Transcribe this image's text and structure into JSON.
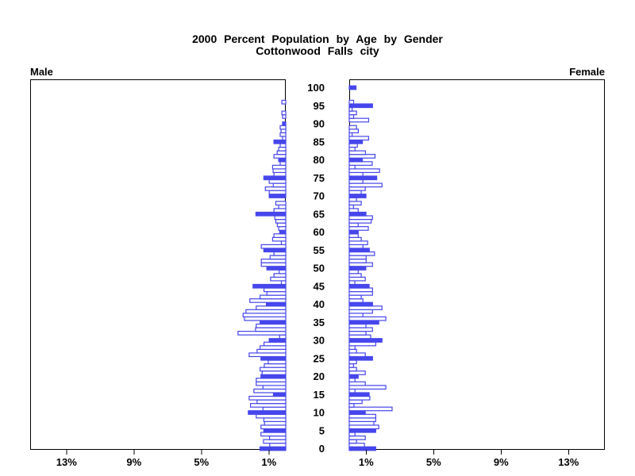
{
  "title": {
    "line1": "2000 Percent Population by Age by Gender",
    "line2": "Cottonwood Falls city"
  },
  "axis_labels": {
    "left": "Male",
    "right": "Female"
  },
  "chart_data": {
    "type": "bar",
    "variant": "population_pyramid",
    "title": "2000 Percent Population by Age by Gender",
    "subtitle": "Cottonwood Falls city",
    "x_axis": {
      "unit": "percent of population",
      "ticks": [
        1,
        5,
        9,
        13
      ],
      "tick_labels": [
        "1%",
        "5%",
        "9%",
        "13%"
      ],
      "max_extent": 15.1,
      "mirrored": true
    },
    "y_axis": {
      "unit": "single year of age",
      "min": 0,
      "max": 100,
      "tick_interval": 5,
      "tick_labels": [
        "0",
        "5",
        "10",
        "15",
        "20",
        "25",
        "30",
        "35",
        "40",
        "45",
        "50",
        "55",
        "60",
        "65",
        "70",
        "75",
        "80",
        "85",
        "90",
        "95",
        "100"
      ]
    },
    "bar_style_rule": "ages divisible by 5 are solid blue; all other ages are white with blue outline",
    "colors": {
      "bar_blue": "#4646ec",
      "outline_bar_fill": "#ffffff",
      "axis_black": "#000000",
      "background": "#ffffff"
    },
    "series": [
      {
        "name": "Male",
        "side": "left",
        "ages": "index equals age 0..100",
        "values": [
          1.53,
          0.95,
          1.32,
          0.96,
          1.47,
          1.3,
          1.47,
          1.26,
          1.3,
          1.75,
          2.22,
          1.35,
          2.09,
          1.7,
          2.17,
          0.73,
          1.89,
          1.35,
          1.75,
          1.75,
          1.47,
          1.4,
          1.52,
          1.27,
          1.04,
          1.47,
          2.17,
          1.7,
          1.52,
          1.29,
          0.98,
          0.36,
          2.83,
          1.79,
          1.75,
          1.52,
          2.45,
          2.53,
          2.36,
          1.75,
          1.15,
          2.13,
          1.52,
          1.12,
          1.29,
          1.94,
          0.26,
          0.9,
          0.7,
          0.39,
          1.12,
          1.45,
          1.45,
          0.93,
          0.7,
          1.3,
          1.45,
          0.26,
          0.78,
          0.7,
          0.36,
          0.42,
          0.5,
          0.59,
          0.65,
          1.77,
          0.7,
          0.42,
          0.59,
          0.0,
          0.98,
          0.98,
          1.21,
          0.74,
          0.98,
          1.3,
          0.7,
          0.75,
          0.78,
          0.33,
          0.42,
          0.7,
          0.51,
          0.42,
          0.33,
          0.7,
          0.19,
          0.33,
          0.28,
          0.33,
          0.19,
          0.0,
          0.19,
          0.23,
          0.0,
          0.0,
          0.23,
          0.0,
          0.0,
          0.0,
          0.0
        ]
      },
      {
        "name": "Female",
        "side": "right",
        "ages": "index equals age 0..100",
        "values": [
          1.57,
          0.9,
          0.43,
          0.95,
          0.34,
          1.57,
          1.75,
          1.46,
          1.57,
          1.57,
          0.95,
          2.54,
          0.28,
          0.76,
          1.22,
          1.18,
          0.34,
          2.17,
          0.95,
          0.34,
          0.53,
          0.95,
          0.43,
          0.25,
          0.43,
          1.38,
          0.95,
          0.43,
          0.34,
          1.57,
          1.94,
          1.27,
          0.99,
          1.38,
          0.99,
          1.75,
          2.17,
          0.81,
          1.38,
          1.94,
          1.38,
          0.81,
          0.71,
          1.38,
          1.38,
          1.18,
          0.33,
          0.95,
          0.71,
          0.53,
          0.98,
          1.38,
          1.0,
          1.0,
          1.5,
          1.19,
          0.81,
          1.09,
          0.71,
          0.53,
          0.53,
          1.13,
          0.53,
          1.3,
          1.38,
          0.99,
          0.53,
          0.25,
          0.71,
          0.43,
          0.99,
          0.71,
          0.95,
          1.94,
          0.81,
          1.63,
          0.81,
          1.8,
          0.34,
          1.36,
          0.78,
          1.53,
          0.96,
          0.34,
          0.48,
          0.78,
          1.15,
          0.17,
          0.54,
          0.43,
          0.0,
          1.15,
          0.26,
          0.43,
          0.17,
          1.38,
          0.26,
          0.0,
          0.0,
          0.0,
          0.4
        ]
      }
    ]
  }
}
